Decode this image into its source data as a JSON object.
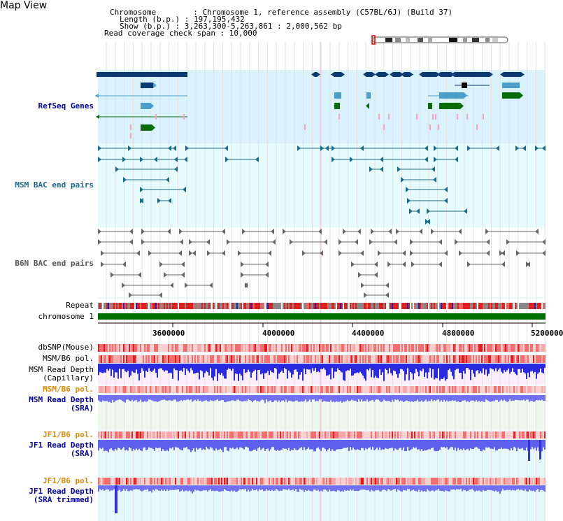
{
  "view_title": "Map View",
  "header": {
    "chromosome_line": "Chromosome        : Chromosome 1, reference assembly (C57BL/6J) (Build 37)",
    "length_line": "Length (b.p.) : 197,195,432",
    "show_line": "Show (b.p.) : 3,263,300-5,263,861 : 2,000,562 bp",
    "coverage_line": "Read coverage check span : 10,000"
  },
  "tracks": {
    "refseq": "RefSeq Genes",
    "msm_bac": "MSM BAC end pairs",
    "b6n_bac": "B6N BAC end pairs",
    "repeat": "Repeat",
    "chromosome": "chromosome 1"
  },
  "axis_ticks": [
    "3600000",
    "4000000",
    "4400000",
    "4800000",
    "5200000"
  ],
  "data_tracks": {
    "dbsnp": "dbSNP(Mouse)",
    "msm_b6_pol_1": "MSM/B6 pol.",
    "msm_read_depth_cap_1": "MSM Read Depth",
    "msm_read_depth_cap_2": "(Capillary)",
    "msm_b6_pol_2": "MSM/B6 pol.",
    "msm_read_depth_sra_1": "MSM Read Depth",
    "msm_read_depth_sra_2": "(SRA)",
    "jf1_b6_pol_1": "JF1/B6 pol.",
    "jf1_read_depth_1": "JF1 Read Depth",
    "jf1_read_depth_2": "(SRA)",
    "jf1_b6_pol_2": "JF1/B6 pol.",
    "jf1_trim_1": "JF1 Read Depth",
    "jf1_trim_2": "(SRA trimmed)"
  },
  "colors": {
    "refseq_bg": "#d9f2fb",
    "bac_bg": "#e6fbfb",
    "gene_dark": "#0b3a73",
    "gene_teal": "#4a9ec7",
    "gene_green": "#0a6b0a",
    "bac_msm": "#1a6a8a",
    "bac_b6n": "#666666",
    "chromosome_bar": "#007000",
    "depth_blue": "#3030e0",
    "label_blue": "#0000a0",
    "label_orange": "#e08a00"
  }
}
